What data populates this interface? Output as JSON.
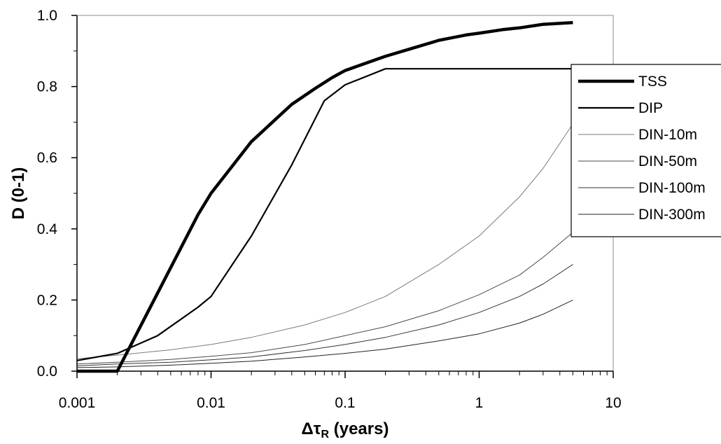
{
  "chart_data": {
    "type": "line",
    "title": "",
    "xlabel": {
      "symbol": "Δτ",
      "subscript": "R",
      "text": " (years)"
    },
    "ylabel": "D (0-1)",
    "xscale": "log",
    "xlim": [
      0.001,
      10
    ],
    "ylim": [
      0.0,
      1.0
    ],
    "x_ticks": [
      "0.001",
      "0.01",
      "0.1",
      "1",
      "10"
    ],
    "y_ticks": [
      "0.0",
      "0.2",
      "0.4",
      "0.6",
      "0.8",
      "1.0"
    ],
    "grid": false,
    "legend_position": "right",
    "series": [
      {
        "name": "TSS",
        "color": "#000000",
        "width": "thick",
        "x": [
          0.001,
          0.002,
          0.004,
          0.008,
          0.01,
          0.02,
          0.04,
          0.06,
          0.08,
          0.1,
          0.2,
          0.3,
          0.5,
          0.8,
          1,
          1.5,
          2,
          3,
          5
        ],
        "y": [
          0.0,
          0.0,
          0.22,
          0.44,
          0.5,
          0.645,
          0.75,
          0.795,
          0.825,
          0.845,
          0.885,
          0.905,
          0.93,
          0.945,
          0.95,
          0.96,
          0.965,
          0.975,
          0.98
        ]
      },
      {
        "name": "DIP",
        "color": "#000000",
        "width": "medium",
        "x": [
          0.001,
          0.002,
          0.004,
          0.008,
          0.01,
          0.02,
          0.04,
          0.07,
          0.1,
          0.2,
          0.5,
          1,
          2,
          5
        ],
        "y": [
          0.03,
          0.05,
          0.1,
          0.18,
          0.21,
          0.38,
          0.58,
          0.76,
          0.805,
          0.85,
          0.85,
          0.85,
          0.85,
          0.85
        ]
      },
      {
        "name": "DIN-10m",
        "color": "#7a7a7a",
        "width": "thin",
        "x": [
          0.001,
          0.002,
          0.005,
          0.01,
          0.02,
          0.05,
          0.1,
          0.2,
          0.5,
          1,
          2,
          3,
          5
        ],
        "y": [
          0.035,
          0.045,
          0.06,
          0.075,
          0.095,
          0.13,
          0.165,
          0.21,
          0.3,
          0.38,
          0.49,
          0.57,
          0.695
        ]
      },
      {
        "name": "DIN-50m",
        "color": "#4a4a4a",
        "width": "thin",
        "x": [
          0.001,
          0.002,
          0.005,
          0.01,
          0.02,
          0.05,
          0.1,
          0.2,
          0.5,
          1,
          2,
          3,
          5
        ],
        "y": [
          0.02,
          0.025,
          0.033,
          0.042,
          0.052,
          0.075,
          0.1,
          0.125,
          0.17,
          0.215,
          0.27,
          0.32,
          0.39
        ]
      },
      {
        "name": "DIN-100m",
        "color": "#333333",
        "width": "thin",
        "x": [
          0.001,
          0.002,
          0.005,
          0.01,
          0.02,
          0.05,
          0.1,
          0.2,
          0.5,
          1,
          2,
          3,
          5
        ],
        "y": [
          0.015,
          0.02,
          0.025,
          0.032,
          0.04,
          0.058,
          0.075,
          0.095,
          0.13,
          0.165,
          0.21,
          0.245,
          0.3
        ]
      },
      {
        "name": "DIN-300m",
        "color": "#222222",
        "width": "thin",
        "x": [
          0.001,
          0.002,
          0.005,
          0.01,
          0.02,
          0.05,
          0.1,
          0.2,
          0.5,
          1,
          2,
          3,
          5
        ],
        "y": [
          0.01,
          0.012,
          0.017,
          0.022,
          0.028,
          0.04,
          0.05,
          0.062,
          0.085,
          0.105,
          0.135,
          0.16,
          0.2
        ]
      }
    ]
  }
}
